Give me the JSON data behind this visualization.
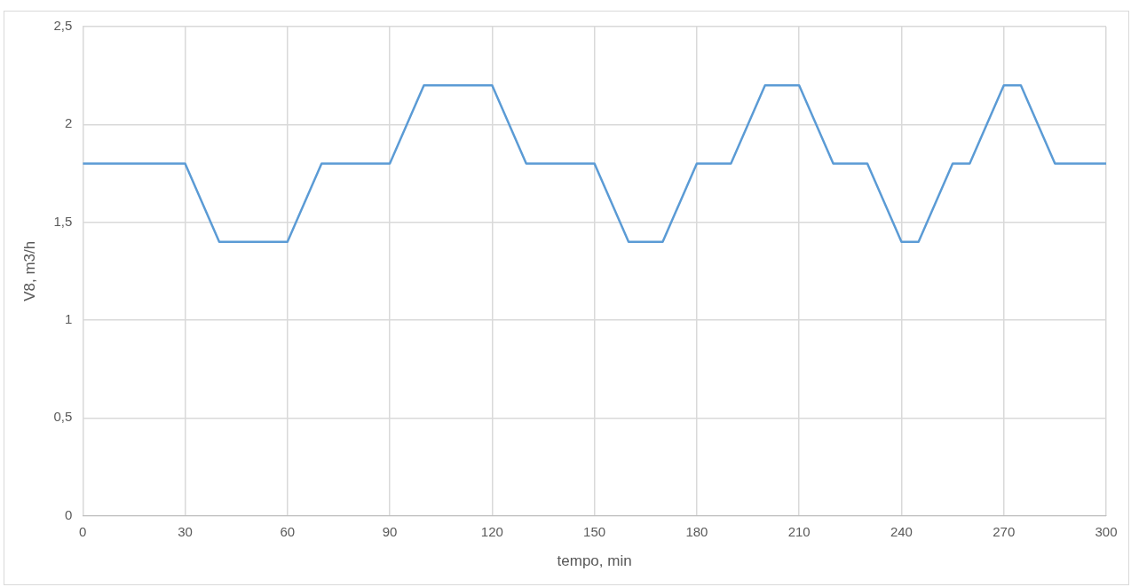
{
  "chart_data": {
    "type": "line",
    "xlabel": "tempo, min",
    "ylabel": "V8, m3/h",
    "x": [
      0,
      30,
      40,
      60,
      70,
      90,
      100,
      120,
      130,
      150,
      160,
      170,
      180,
      190,
      200,
      210,
      220,
      230,
      240,
      245,
      255,
      260,
      270,
      275,
      285,
      300
    ],
    "series": [
      {
        "color": "#5b9bd5",
        "values": [
          1.8,
          1.8,
          1.4,
          1.4,
          1.8,
          1.8,
          2.2,
          2.2,
          1.8,
          1.8,
          1.4,
          1.4,
          1.8,
          1.8,
          2.2,
          2.2,
          1.8,
          1.8,
          1.4,
          1.4,
          1.8,
          1.8,
          2.2,
          2.2,
          1.8,
          1.8
        ]
      }
    ],
    "xlim": [
      0,
      300
    ],
    "xticks": [
      0,
      30,
      60,
      90,
      120,
      150,
      180,
      210,
      240,
      270,
      300
    ],
    "ylim": [
      0,
      2.5
    ],
    "yticks": [
      0,
      {
        "value": 0.5,
        "label": "0,5"
      },
      1,
      {
        "value": 1.5,
        "label": "1,5"
      },
      2,
      {
        "value": 2.5,
        "label": "2,5"
      }
    ],
    "grid": true,
    "legend": false,
    "marker": "none",
    "line_style": "solid"
  }
}
